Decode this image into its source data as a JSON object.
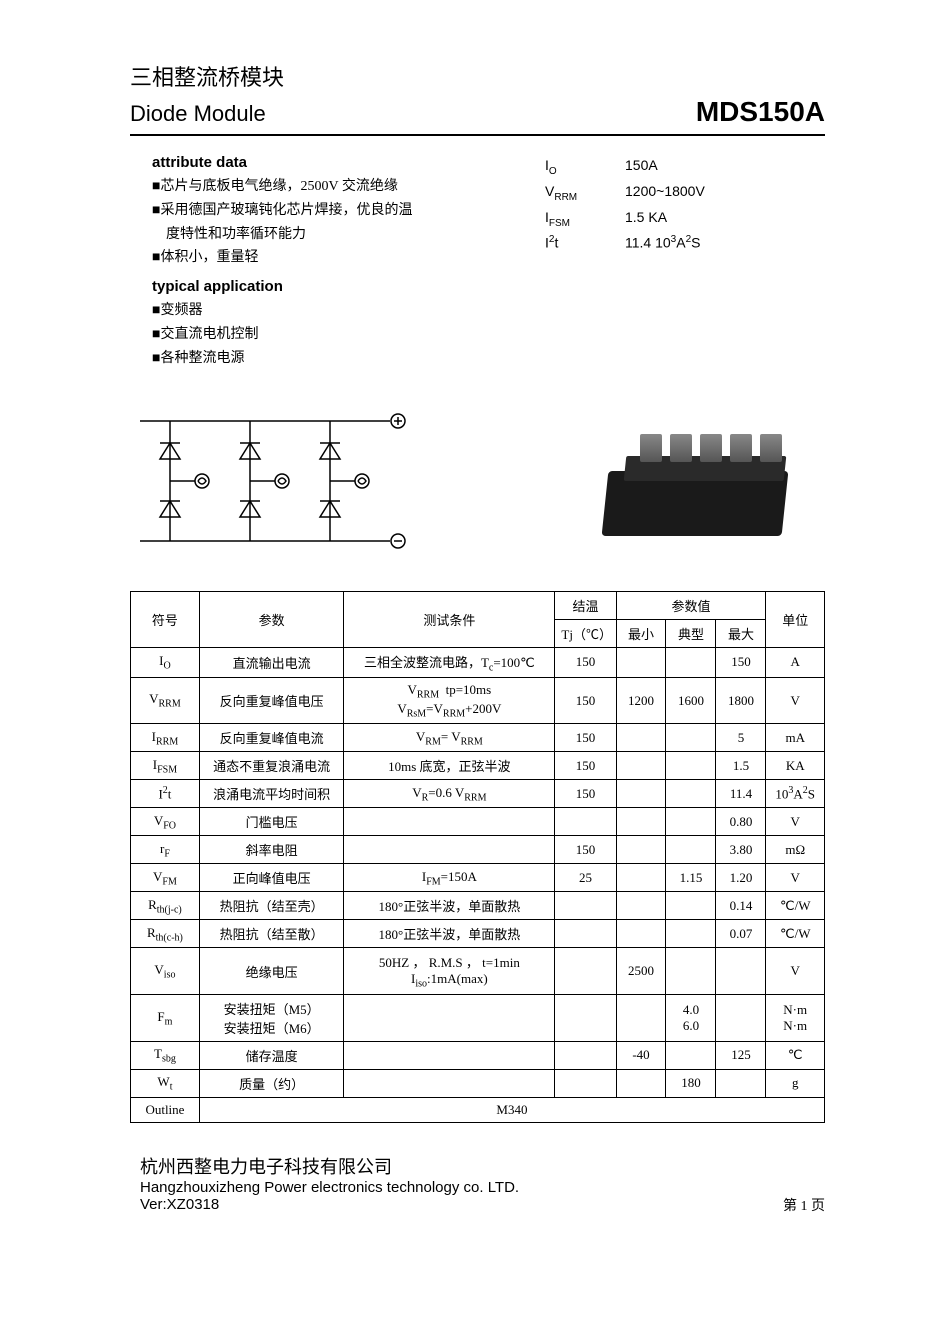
{
  "header": {
    "title_cn": "三相整流桥模块",
    "title_en": "Diode Module",
    "product": "MDS150A"
  },
  "attribute": {
    "heading": "attribute data",
    "items": [
      "■芯片与底板电气绝缘，2500V 交流绝缘",
      "■采用德国产玻璃钝化芯片焊接，优良的温",
      "度特性和功率循环能力",
      "■体积小，重量轻"
    ]
  },
  "application": {
    "heading": "typical application",
    "items": [
      "■变频器",
      "■交直流电机控制",
      "■各种整流电源"
    ]
  },
  "key_specs": [
    {
      "sym_html": "I<sub>O</sub>",
      "val": "150A"
    },
    {
      "sym_html": "V<sub>RRM</sub>",
      "val": "1200~1800V"
    },
    {
      "sym_html": "I<sub>FSM</sub>",
      "val": "1.5 KA"
    },
    {
      "sym_html": "I<sup>2</sup>t",
      "val_html": "11.4 10<sup>3</sup>A<sup>2</sup>S"
    }
  ],
  "table": {
    "headers": {
      "sym": "符号",
      "param": "参数",
      "cond": "测试条件",
      "tj": "结温",
      "tj_unit": "Tj（℃）",
      "vals": "参数值",
      "min": "最小",
      "typ": "典型",
      "max": "最大",
      "unit": "单位"
    },
    "rows": [
      {
        "sym_html": "I<sub>O</sub>",
        "param": "直流输出电流",
        "cond_html": "三相全波整流电路，T<sub>c</sub>=100℃",
        "tj": "150",
        "min": "",
        "typ": "",
        "max": "150",
        "unit": "A"
      },
      {
        "sym_html": "V<sub>RRM</sub>",
        "param": "反向重复峰值电压",
        "cond_html": "V<sub>RRM</sub>&nbsp;&nbsp;tp=10ms<br>V<sub>RsM</sub>=V<sub>RRM</sub>+200V",
        "tj": "150",
        "min": "1200",
        "typ": "1600",
        "max": "1800",
        "unit": "V"
      },
      {
        "sym_html": "I<sub>RRM</sub>",
        "param": "反向重复峰值电流",
        "cond_html": "V<sub>RM</sub>= V<sub>RRM</sub>",
        "tj": "150",
        "min": "",
        "typ": "",
        "max": "5",
        "unit": "mA"
      },
      {
        "sym_html": "I<sub>FSM</sub>",
        "param": "通态不重复浪涌电流",
        "cond_html": "10ms 底宽，正弦半波",
        "tj": "150",
        "min": "",
        "typ": "",
        "max": "1.5",
        "unit": "KA"
      },
      {
        "sym_html": "I<sup>2</sup>t",
        "param": "浪涌电流平均时间积",
        "cond_html": "V<sub>R</sub>=0.6 V<sub>RRM</sub>",
        "tj": "150",
        "min": "",
        "typ": "",
        "max": "11.4",
        "unit_html": "10<sup>3</sup>A<sup>2</sup>S"
      },
      {
        "sym_html": "V<sub>FO</sub>",
        "param": "门槛电压",
        "cond_html": "",
        "tj": "",
        "min": "",
        "typ": "",
        "max": "0.80",
        "unit": "V"
      },
      {
        "sym_html": "r<sub>F</sub>",
        "param": "斜率电阻",
        "cond_html": "",
        "tj": "150",
        "min": "",
        "typ": "",
        "max": "3.80",
        "unit": "mΩ"
      },
      {
        "sym_html": "V<sub>FM</sub>",
        "param": "正向峰值电压",
        "cond_html": "I<sub>FM</sub>=150A",
        "tj": "25",
        "min": "",
        "typ": "1.15",
        "max": "1.20",
        "unit": "V"
      },
      {
        "sym_html": "R<sub>th(j-c)</sub>",
        "param": "热阻抗（结至壳）",
        "cond_html": "180°正弦半波，单面散热",
        "tj": "",
        "min": "",
        "typ": "",
        "max": "0.14",
        "unit": "℃/W"
      },
      {
        "sym_html": "R<sub>th(c-h)</sub>",
        "param": "热阻抗（结至散）",
        "cond_html": "180°正弦半波，单面散热",
        "tj": "",
        "min": "",
        "typ": "",
        "max": "0.07",
        "unit": "℃/W"
      },
      {
        "sym_html": "V<sub>iso</sub>",
        "param": "绝缘电压",
        "cond_html": "50HZ ， R.M.S ， t=1min<br>I<sub>iso</sub>:1mA(max)",
        "tj": "",
        "min": "2500",
        "typ": "",
        "max": "",
        "unit": "V"
      },
      {
        "sym_html": "F<sub>m</sub>",
        "param_html": "安装扭矩（M5）<br>安装扭矩（M6）",
        "cond_html": "",
        "tj": "",
        "min": "",
        "typ_html": "4.0<br>6.0",
        "max": "",
        "unit_html": "N·m<br>N·m"
      },
      {
        "sym_html": "T<sub>sbg</sub>",
        "param": "储存温度",
        "cond_html": "",
        "tj": "",
        "min": "-40",
        "typ": "",
        "max": "125",
        "unit": "℃"
      },
      {
        "sym_html": "W<sub>t</sub>",
        "param": "质量（约）",
        "cond_html": "",
        "tj": "",
        "min": "",
        "typ": "180",
        "max": "",
        "unit": "g"
      }
    ],
    "outline_label": "Outline",
    "outline_value": "M340"
  },
  "footer": {
    "company_cn": "杭州西整电力电子科技有限公司",
    "company_en": "Hangzhouxizheng Power electronics technology co. LTD.",
    "version": "Ver:XZ0318",
    "page": "第 1 页"
  },
  "circuit_diagram": {
    "type": "schematic",
    "description": "Three-phase bridge rectifier — 6 diodes, 3 AC inputs (~), + and − rails",
    "line_color": "#000000",
    "line_width": 1.5
  }
}
